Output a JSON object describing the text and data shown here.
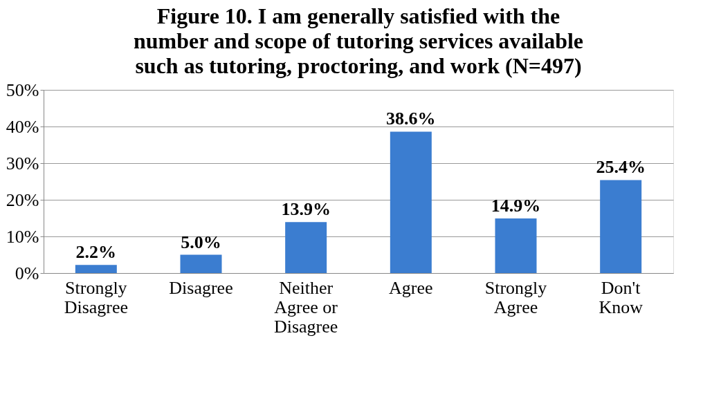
{
  "chart_data": {
    "type": "bar",
    "title": "Figure 10. I am generally satisfied with the number and scope of tutoring services available such as tutoring, proctoring, and work (N=497)",
    "categories": [
      "Strongly Disagree",
      "Disagree",
      "Neither Agree or Disagree",
      "Agree",
      "Strongly Agree",
      "Don't Know"
    ],
    "values": [
      2.2,
      5.0,
      13.9,
      38.6,
      14.9,
      25.4
    ],
    "value_labels": [
      "2.2%",
      "5.0%",
      "13.9%",
      "38.6%",
      "14.9%",
      "25.4%"
    ],
    "color": "#3b7dd0",
    "ylim": [
      0,
      50
    ],
    "yticks": [
      {
        "value": 0,
        "label": "0%"
      },
      {
        "value": 10,
        "label": "10%"
      },
      {
        "value": 20,
        "label": "20%"
      },
      {
        "value": 30,
        "label": "30%"
      },
      {
        "value": 40,
        "label": "40%"
      },
      {
        "value": 50,
        "label": "50%"
      }
    ],
    "grid": "y"
  }
}
